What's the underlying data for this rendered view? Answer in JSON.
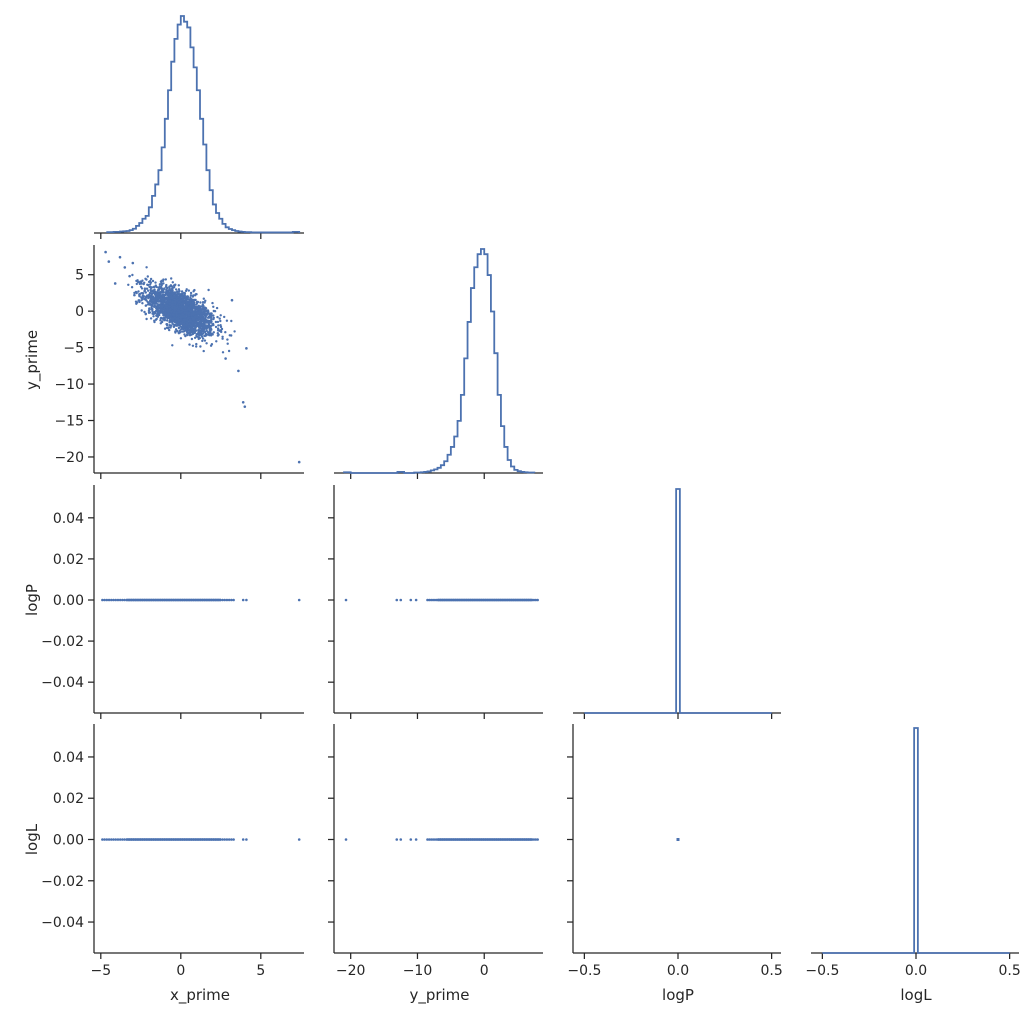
{
  "colors": {
    "series": "#4c72b0",
    "axis": "#262626"
  },
  "chart_data": {
    "type": "pairplot",
    "variables": [
      "x_prime",
      "y_prime",
      "logP",
      "logL"
    ],
    "layout": "lower-triangle (corner)",
    "grid": false,
    "axes": {
      "x_prime": {
        "range": [
          -5.3,
          7.7
        ],
        "ticks": [
          -5,
          0,
          5
        ],
        "tick_labels": [
          "−5",
          "0",
          "5"
        ],
        "label": "x_prime"
      },
      "y_prime": {
        "range": [
          -22.2,
          8.8
        ],
        "ticks": [
          -20,
          -10,
          0
        ],
        "tick_labels": [
          "−20",
          "−10",
          "0"
        ],
        "label": "y_prime",
        "y_ticks": [
          5,
          0,
          -5,
          -10,
          -15,
          -20
        ],
        "y_tick_labels": [
          "5",
          "0",
          "−5",
          "−10",
          "−15",
          "−20"
        ]
      },
      "logP": {
        "range": [
          -0.55,
          0.55
        ],
        "ticks": [
          -0.5,
          0.0,
          0.5
        ],
        "tick_labels": [
          "−0.5",
          "0.0",
          "0.5"
        ],
        "label": "logP",
        "y_range": [
          -0.055,
          0.055
        ],
        "y_ticks": [
          0.04,
          0.02,
          0.0,
          -0.02,
          -0.04
        ],
        "y_tick_labels": [
          "0.04",
          "0.02",
          "0.00",
          "−0.02",
          "−0.04"
        ]
      },
      "logL": {
        "range": [
          -0.55,
          0.55
        ],
        "ticks": [
          -0.5,
          0.0,
          0.5
        ],
        "tick_labels": [
          "−0.5",
          "0.0",
          "0.5"
        ],
        "label": "logL",
        "y_range": [
          -0.055,
          0.055
        ],
        "y_ticks": [
          0.04,
          0.02,
          0.0,
          -0.02,
          -0.04
        ],
        "y_tick_labels": [
          "0.04",
          "0.02",
          "0.00",
          "−0.02",
          "−0.04"
        ]
      }
    },
    "histograms": {
      "x_prime": {
        "bin_edges": [
          -4.6,
          -4.4,
          -4.2,
          -4.0,
          -3.8,
          -3.6,
          -3.4,
          -3.2,
          -3.0,
          -2.8,
          -2.6,
          -2.4,
          -2.2,
          -2.0,
          -1.8,
          -1.6,
          -1.4,
          -1.2,
          -1.0,
          -0.8,
          -0.6,
          -0.4,
          -0.2,
          0.0,
          0.2,
          0.4,
          0.6,
          0.8,
          1.0,
          1.2,
          1.4,
          1.6,
          1.8,
          2.0,
          2.2,
          2.4,
          2.6,
          2.8,
          3.0,
          3.2,
          3.4,
          3.6,
          3.8,
          4.0,
          4.2,
          4.4,
          4.6,
          4.8,
          5.0,
          5.2,
          5.4,
          5.6,
          5.8,
          6.0,
          6.2,
          6.4,
          6.6,
          6.8,
          7.0,
          7.2,
          7.4
        ],
        "density": [
          0.003,
          0.003,
          0.004,
          0.004,
          0.005,
          0.006,
          0.007,
          0.01,
          0.015,
          0.025,
          0.035,
          0.05,
          0.06,
          0.09,
          0.13,
          0.17,
          0.22,
          0.3,
          0.4,
          0.5,
          0.6,
          0.68,
          0.73,
          0.76,
          0.74,
          0.72,
          0.65,
          0.58,
          0.5,
          0.4,
          0.31,
          0.22,
          0.15,
          0.1,
          0.07,
          0.05,
          0.032,
          0.02,
          0.014,
          0.01,
          0.007,
          0.005,
          0.004,
          0.003,
          0.003,
          0.002,
          0.002,
          0.002,
          0.002,
          0.002,
          0.002,
          0.002,
          0.002,
          0.002,
          0.002,
          0.002,
          0.002,
          0.002,
          0.004,
          0.004
        ]
      },
      "y_prime": {
        "bin_edges": [
          -21.0,
          -20.5,
          -20.0,
          -19.5,
          -19.0,
          -18.5,
          -18.0,
          -17.5,
          -17.0,
          -16.5,
          -16.0,
          -15.5,
          -15.0,
          -14.5,
          -14.0,
          -13.5,
          -13.0,
          -12.5,
          -12.0,
          -11.5,
          -11.0,
          -10.5,
          -10.0,
          -9.5,
          -9.0,
          -8.5,
          -8.0,
          -7.5,
          -7.0,
          -6.5,
          -6.0,
          -5.5,
          -5.0,
          -4.5,
          -4.0,
          -3.5,
          -3.0,
          -2.5,
          -2.0,
          -1.5,
          -1.0,
          -0.5,
          0.0,
          0.5,
          1.0,
          1.5,
          2.0,
          2.5,
          3.0,
          3.5,
          4.0,
          4.5,
          5.0,
          5.5,
          6.0,
          6.5,
          7.0,
          7.5
        ],
        "density": [
          0.003,
          0.003,
          0.0,
          0.0,
          0.0,
          0.0,
          0.0,
          0.0,
          0.0,
          0.0,
          0.0,
          0.0,
          0.0,
          0.0,
          0.0,
          0.0,
          0.004,
          0.004,
          0.0,
          0.0,
          0.0,
          0.002,
          0.002,
          0.003,
          0.004,
          0.006,
          0.01,
          0.014,
          0.02,
          0.03,
          0.045,
          0.07,
          0.1,
          0.14,
          0.2,
          0.3,
          0.44,
          0.58,
          0.71,
          0.79,
          0.84,
          0.86,
          0.84,
          0.76,
          0.62,
          0.46,
          0.3,
          0.18,
          0.1,
          0.05,
          0.025,
          0.012,
          0.007,
          0.004,
          0.003,
          0.002,
          0.002
        ]
      },
      "logP": {
        "bin_edges": [
          -0.5,
          -0.01,
          0.01,
          0.5
        ],
        "density": [
          0.0,
          1.0,
          0.0
        ]
      },
      "logL": {
        "bin_edges": [
          -0.5,
          -0.01,
          0.01,
          0.5
        ],
        "density": [
          0.0,
          1.0,
          0.0
        ]
      }
    },
    "scatter": {
      "x_prime_vs_y_prime": {
        "description_points": [
          {
            "x": -4.7,
            "y": 8.1
          },
          {
            "x": -4.5,
            "y": 6.8
          },
          {
            "x": -4.1,
            "y": 3.8
          },
          {
            "x": -3.8,
            "y": 7.4
          },
          {
            "x": -3.5,
            "y": 6.0
          },
          {
            "x": -3.2,
            "y": 4.8
          },
          {
            "x": -3.0,
            "y": 6.6
          },
          {
            "x": -2.9,
            "y": 2.2
          },
          {
            "x": 2.8,
            "y": -6.5
          },
          {
            "x": 3.2,
            "y": 1.5
          },
          {
            "x": 3.6,
            "y": -8.2
          },
          {
            "x": 3.9,
            "y": -12.5
          },
          {
            "x": 4.0,
            "y": -13.1
          },
          {
            "x": 4.1,
            "y": -5.1
          },
          {
            "x": 7.4,
            "y": -20.7
          }
        ],
        "bulk": {
          "x_mean": 0.0,
          "x_sd": 1.05,
          "slope": -1.0,
          "resid_sd": 1.35,
          "x_clip": [
            -3.3,
            3.4
          ]
        }
      },
      "x_prime_vs_logP": {
        "y": 0.0,
        "x_extent": [
          -4.9,
          3.3
        ],
        "outliers_x": [
          3.9,
          4.1,
          7.4
        ]
      },
      "y_prime_vs_logP": {
        "y": 0.0,
        "x_extent": [
          -8.5,
          8.0
        ],
        "outliers_x": [
          -20.7,
          -13.1,
          -12.5,
          -11.0,
          -10.2
        ]
      },
      "x_prime_vs_logL": {
        "y": 0.0,
        "x_extent": [
          -4.9,
          3.3
        ],
        "outliers_x": [
          3.9,
          4.1,
          7.4
        ]
      },
      "y_prime_vs_logL": {
        "y": 0.0,
        "x_extent": [
          -8.5,
          8.0
        ],
        "outliers_x": [
          -20.7,
          -13.1,
          -12.5,
          -11.0,
          -10.2
        ]
      },
      "logP_vs_logL": {
        "points": [
          {
            "x": 0.0,
            "y": 0.0
          }
        ]
      }
    }
  }
}
